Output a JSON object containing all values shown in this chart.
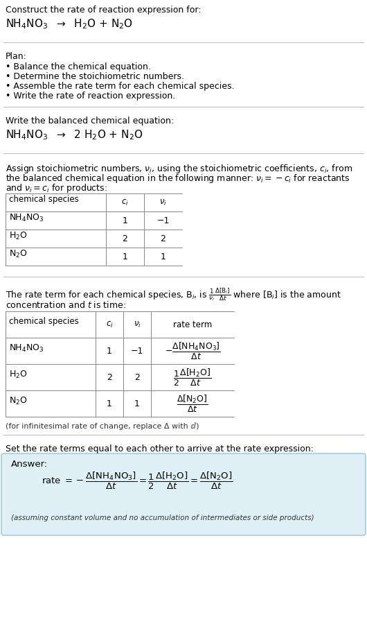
{
  "bg_color": "#ffffff",
  "text_color": "#000000",
  "title_text": "Construct the rate of reaction expression for:",
  "plan_title": "Plan:",
  "plan_bullets": [
    "• Balance the chemical equation.",
    "• Determine the stoichiometric numbers.",
    "• Assemble the rate term for each chemical species.",
    "• Write the rate of reaction expression."
  ],
  "balanced_label": "Write the balanced chemical equation:",
  "assign_text1": "Assign stoichiometric numbers, $\\nu_i$, using the stoichiometric coefficients, $c_i$, from",
  "assign_text2": "the balanced chemical equation in the following manner: $\\nu_i = -c_i$ for reactants",
  "assign_text3": "and $\\nu_i = c_i$ for products:",
  "table1_headers": [
    "chemical species",
    "$c_i$",
    "$\\nu_i$"
  ],
  "table1_rows": [
    [
      "NH$_4$NO$_3$",
      "1",
      "−1"
    ],
    [
      "H$_2$O",
      "2",
      "2"
    ],
    [
      "N$_2$O",
      "1",
      "1"
    ]
  ],
  "rate_text1": "The rate term for each chemical species, B$_i$, is $\\frac{1}{\\nu_i}\\frac{\\Delta[\\mathrm{B}_i]}{\\Delta t}$ where [B$_i$] is the amount",
  "rate_text2": "concentration and $t$ is time:",
  "table2_headers": [
    "chemical species",
    "$c_i$",
    "$\\nu_i$",
    "rate term"
  ],
  "table2_rows": [
    [
      "NH$_4$NO$_3$",
      "1",
      "−1",
      "$-\\dfrac{\\Delta[\\mathrm{NH_4NO_3}]}{\\Delta t}$"
    ],
    [
      "H$_2$O",
      "2",
      "2",
      "$\\dfrac{1}{2}\\dfrac{\\Delta[\\mathrm{H_2O}]}{\\Delta t}$"
    ],
    [
      "N$_2$O",
      "1",
      "1",
      "$\\dfrac{\\Delta[\\mathrm{N_2O}]}{\\Delta t}$"
    ]
  ],
  "infinitesimal_note": "(for infinitesimal rate of change, replace Δ with ⅆ)",
  "set_equal_text": "Set the rate terms equal to each other to arrive at the rate expression:",
  "answer_box_color": "#dff0f7",
  "answer_box_border": "#99c4d8",
  "answer_label": "Answer:",
  "answer_note": "(assuming constant volume and no accumulation of intermediates or side products)"
}
